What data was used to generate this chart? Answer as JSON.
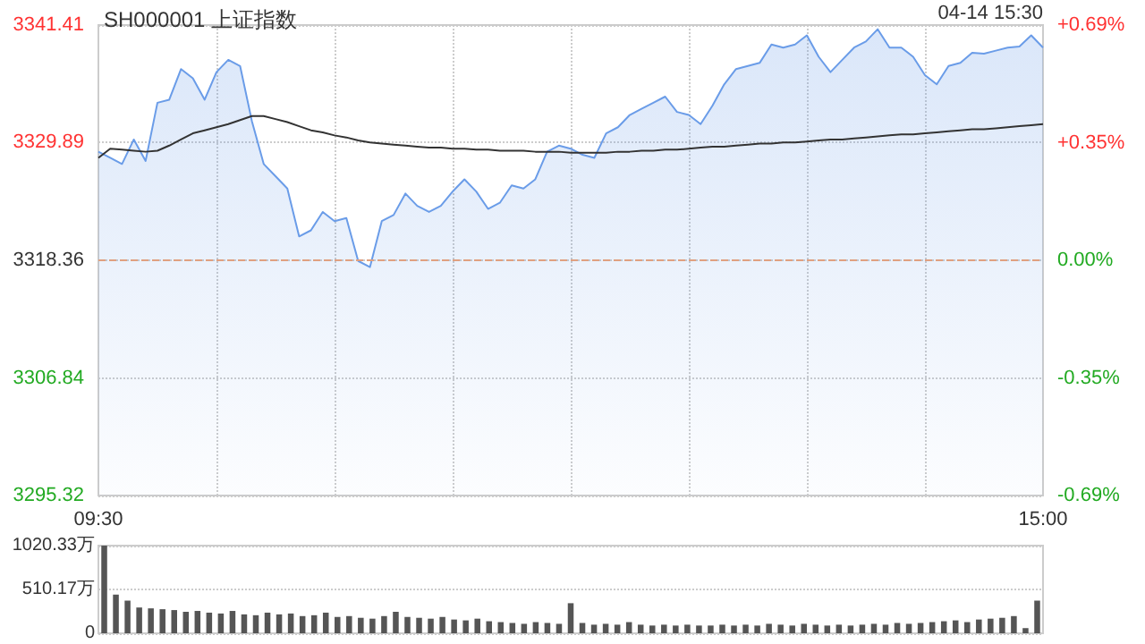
{
  "chart_data": [
    {
      "type": "line",
      "title": "SH000001 上证指数",
      "annotations": [
        "04-14 15:30"
      ],
      "categories": [
        "09:30",
        null,
        null,
        null,
        null,
        null,
        null,
        null,
        null,
        null,
        null,
        null,
        null,
        null,
        null,
        null,
        null,
        null,
        null,
        null,
        null,
        null,
        null,
        null,
        null,
        null,
        null,
        null,
        null,
        null,
        null,
        null,
        null,
        null,
        null,
        null,
        null,
        null,
        null,
        null,
        null,
        null,
        null,
        null,
        null,
        null,
        null,
        null,
        null,
        null,
        null,
        null,
        null,
        null,
        null,
        null,
        null,
        null,
        null,
        null,
        null,
        null,
        null,
        null,
        null,
        null,
        null,
        null,
        null,
        null,
        null,
        null,
        null,
        null,
        null,
        null,
        null,
        null,
        null,
        null,
        "15:00"
      ],
      "series": [
        {
          "type": "area",
          "color": "#6a9ce8",
          "values": [
            3329.0,
            3328.4,
            3327.8,
            3330.2,
            3328.1,
            3333.8,
            3334.1,
            3337.1,
            3336.2,
            3334.1,
            3336.8,
            3338.0,
            3337.4,
            3332.0,
            3327.8,
            3326.6,
            3325.4,
            3320.7,
            3321.3,
            3323.1,
            3322.2,
            3322.5,
            3318.3,
            3317.7,
            3322.2,
            3322.8,
            3324.9,
            3323.7,
            3323.1,
            3323.7,
            3325.1,
            3326.3,
            3325.1,
            3323.4,
            3324.0,
            3325.7,
            3325.4,
            3326.3,
            3329.0,
            3329.6,
            3329.3,
            3328.7,
            3328.4,
            3330.8,
            3331.4,
            3332.6,
            3333.2,
            3333.8,
            3334.4,
            3332.9,
            3332.6,
            3331.7,
            3333.5,
            3335.6,
            3337.1,
            3337.4,
            3337.7,
            3339.5,
            3339.2,
            3339.5,
            3340.4,
            3338.3,
            3336.8,
            3338.0,
            3339.2,
            3339.8,
            3341.0,
            3339.2,
            3339.2,
            3338.3,
            3336.5,
            3335.6,
            3337.4,
            3337.7,
            3338.7,
            3338.6,
            3338.9,
            3339.2,
            3339.3,
            3340.4,
            3339.2
          ]
        },
        {
          "type": "line",
          "color": "#333333",
          "values": [
            3328.4,
            3329.3,
            3329.2,
            3329.1,
            3329.0,
            3329.1,
            3329.6,
            3330.2,
            3330.8,
            3331.1,
            3331.4,
            3331.7,
            3332.1,
            3332.5,
            3332.5,
            3332.2,
            3331.9,
            3331.5,
            3331.1,
            3330.9,
            3330.6,
            3330.4,
            3330.1,
            3329.9,
            3329.8,
            3329.7,
            3329.6,
            3329.5,
            3329.4,
            3329.4,
            3329.3,
            3329.3,
            3329.2,
            3329.2,
            3329.1,
            3329.1,
            3329.1,
            3329.0,
            3329.0,
            3329.0,
            3328.9,
            3328.9,
            3328.9,
            3328.9,
            3329.0,
            3329.0,
            3329.1,
            3329.1,
            3329.2,
            3329.2,
            3329.3,
            3329.4,
            3329.5,
            3329.5,
            3329.6,
            3329.7,
            3329.8,
            3329.8,
            3329.9,
            3329.9,
            3330.0,
            3330.1,
            3330.2,
            3330.2,
            3330.3,
            3330.4,
            3330.5,
            3330.6,
            3330.7,
            3330.7,
            3330.8,
            3330.9,
            3331.0,
            3331.1,
            3331.2,
            3331.2,
            3331.3,
            3331.4,
            3331.5,
            3331.6,
            3331.7
          ]
        }
      ],
      "ylim": [
        3295.32,
        3341.41
      ],
      "yticks": [
        3295.32,
        3306.84,
        3318.36,
        3329.89,
        3341.41
      ],
      "y2lim": [
        -0.69,
        0.69
      ],
      "y2ticks": [
        {
          "value": -0.69,
          "label": "-0.69%"
        },
        {
          "value": -0.345,
          "label": "-0.35%"
        },
        {
          "value": 0,
          "label": "0.00%"
        },
        {
          "value": 0.345,
          "label": "+0.35%"
        },
        {
          "value": 0.69,
          "label": "+0.69%"
        }
      ],
      "ref_lines": [
        {
          "axis": "y",
          "value": 3318.36,
          "color": "#e0a080",
          "line_style": "dashed"
        }
      ],
      "grid": true,
      "marker": "none"
    },
    {
      "type": "bar",
      "categories": [
        null,
        null,
        null,
        null,
        null,
        null,
        null,
        null,
        null,
        null,
        null,
        null,
        null,
        null,
        null,
        null,
        null,
        null,
        null,
        null,
        null,
        null,
        null,
        null,
        null,
        null,
        null,
        null,
        null,
        null,
        null,
        null,
        null,
        null,
        null,
        null,
        null,
        null,
        null,
        null,
        null,
        null,
        null,
        null,
        null,
        null,
        null,
        null,
        null,
        null,
        null,
        null,
        null,
        null,
        null,
        null,
        null,
        null,
        null,
        null,
        null,
        null,
        null,
        null,
        null,
        null,
        null,
        null,
        null,
        null,
        null,
        null,
        null,
        null,
        null,
        null,
        null,
        null,
        null,
        null,
        null
      ],
      "color": "#555555",
      "values": [
        1020,
        450,
        380,
        300,
        290,
        280,
        270,
        250,
        260,
        240,
        230,
        260,
        220,
        210,
        240,
        220,
        230,
        200,
        210,
        240,
        190,
        200,
        180,
        170,
        200,
        250,
        190,
        180,
        170,
        190,
        160,
        150,
        170,
        140,
        130,
        120,
        110,
        130,
        120,
        110,
        350,
        120,
        100,
        110,
        100,
        130,
        100,
        90,
        100,
        90,
        100,
        90,
        90,
        100,
        90,
        100,
        90,
        110,
        100,
        90,
        110,
        100,
        90,
        100,
        90,
        100,
        110,
        100,
        120,
        110,
        120,
        130,
        140,
        150,
        130,
        160,
        170,
        180,
        200,
        60,
        380
      ],
      "ylim": [
        0,
        1020.33
      ],
      "yticks": [
        0,
        {
          "value": 510.17,
          "label": "510.17万"
        },
        {
          "value": 1020.33,
          "label": "1020.33万"
        }
      ],
      "tick_labels": "y",
      "grid": "y"
    }
  ]
}
